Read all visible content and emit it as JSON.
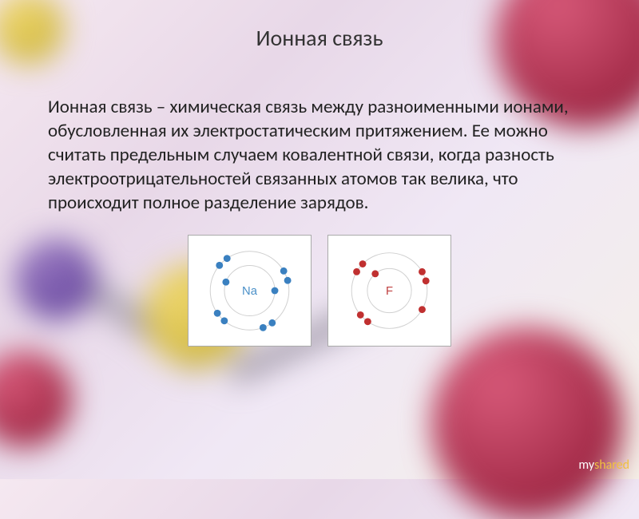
{
  "slide": {
    "title": "Ионная связь",
    "body_text": "Ионная связь – химическая связь между разноименными ионами, обусловленная их электростатическим притяжением. Ее можно считать предельным случаем ковалентной связи, когда разность электроотрицательностей связанных атомов так велика, что происходит полное разделение зарядов.",
    "title_fontsize": 28,
    "body_fontsize": 23,
    "title_color": "#333333",
    "body_color": "#222222",
    "background_gradient": [
      "#f5e8f0",
      "#e8d8e8",
      "#f0e8f5",
      "#f5f0e8"
    ]
  },
  "atoms": {
    "left": {
      "label": "Na",
      "label_color": "#4a90c8",
      "electron_color": "#3a80c0",
      "orbit_color": "#d0d0d0",
      "orbits": [
        32,
        50
      ],
      "electrons": [
        {
          "angle": 90,
          "r": 32
        },
        {
          "angle": 290,
          "r": 32
        },
        {
          "angle": 60,
          "r": 50
        },
        {
          "angle": 75,
          "r": 50
        },
        {
          "angle": 145,
          "r": 50
        },
        {
          "angle": 160,
          "r": 50
        },
        {
          "angle": 220,
          "r": 50
        },
        {
          "angle": 235,
          "r": 50
        },
        {
          "angle": 310,
          "r": 50
        },
        {
          "angle": 325,
          "r": 50
        }
      ]
    },
    "right": {
      "label": "F",
      "label_color": "#c04040",
      "electron_color": "#c03030",
      "orbit_color": "#d0d0d0",
      "orbits": [
        28,
        48
      ],
      "electrons": [
        {
          "angle": 320,
          "r": 28
        },
        {
          "angle": 60,
          "r": 48
        },
        {
          "angle": 75,
          "r": 48
        },
        {
          "angle": 120,
          "r": 48
        },
        {
          "angle": 215,
          "r": 48
        },
        {
          "angle": 230,
          "r": 48
        },
        {
          "angle": 300,
          "r": 48
        },
        {
          "angle": 315,
          "r": 48
        }
      ]
    },
    "electron_radius": 4.5,
    "diagram_bg": "#ffffff",
    "diagram_border": "#aaaaaa"
  },
  "background_spheres": {
    "red_color": [
      "#d85a7a",
      "#a02845",
      "#701830"
    ],
    "yellow_color": [
      "#f0d870",
      "#d0b840",
      "#a89020"
    ],
    "purple_color": [
      "#9878c0",
      "#6848a0",
      "#483080"
    ],
    "bond_color": [
      "#ccc8d0",
      "#a8a0b0",
      "#888090"
    ]
  },
  "footer": {
    "my": "my",
    "shared": "shared"
  }
}
